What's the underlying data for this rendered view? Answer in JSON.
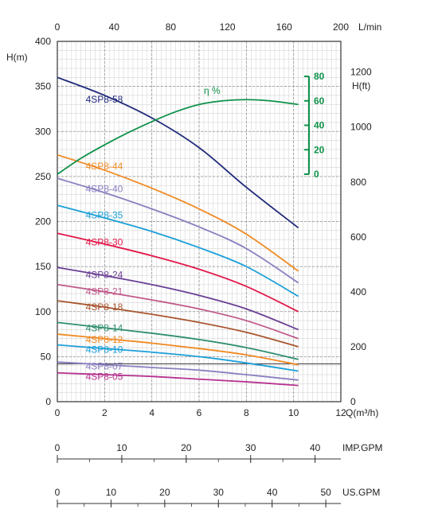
{
  "chart_data": {
    "type": "line",
    "axes": {
      "q_m3h": {
        "label": "Q(m³/h)",
        "ticks": [
          "0",
          "2",
          "4",
          "6",
          "8",
          "10",
          "12"
        ],
        "range": [
          0,
          12
        ]
      },
      "q_lmin": {
        "label": "L/min",
        "ticks": [
          "0",
          "40",
          "80",
          "120",
          "160",
          "200"
        ],
        "range": [
          0,
          200
        ]
      },
      "head_m": {
        "label": "H(m)",
        "ticks": [
          "0",
          "50",
          "100",
          "150",
          "200",
          "250",
          "300",
          "350",
          "400"
        ],
        "range": [
          0,
          400
        ]
      },
      "head_ft": {
        "label": "H(ft)",
        "ticks": [
          "0",
          "200",
          "400",
          "600",
          "800",
          "1000",
          "1200"
        ],
        "range": [
          0,
          1312
        ]
      },
      "efficiency": {
        "label": "η %",
        "ticks": [
          "0",
          "20",
          "40",
          "60",
          "80"
        ],
        "range": [
          0,
          80
        ]
      },
      "imp_gpm": {
        "label": "IMP.GPM",
        "ticks": [
          "0",
          "10",
          "20",
          "30",
          "40"
        ],
        "range": [
          0,
          44
        ]
      },
      "us_gpm": {
        "label": "US.GPM",
        "ticks": [
          "0",
          "10",
          "20",
          "30",
          "40",
          "50"
        ],
        "range": [
          0,
          52.8
        ]
      }
    },
    "grid": true,
    "reference_line_head_m": 42,
    "series": [
      {
        "name": "4SP8-58",
        "color": "#1f2a7a",
        "x": [
          0,
          2,
          4,
          6,
          8,
          10.2
        ],
        "y": [
          360,
          340,
          315,
          282,
          238,
          193
        ]
      },
      {
        "name": "4SP8-44",
        "color": "#f08a24",
        "x": [
          0,
          2,
          4,
          6,
          8,
          10.2
        ],
        "y": [
          274,
          257,
          237,
          214,
          186,
          145
        ]
      },
      {
        "name": "4SP8-40",
        "color": "#8a7ec0",
        "x": [
          0,
          2,
          4,
          6,
          8,
          10.2
        ],
        "y": [
          248,
          232,
          214,
          194,
          170,
          132
        ]
      },
      {
        "name": "4SP8-35",
        "color": "#1b9fd8",
        "x": [
          0,
          2,
          4,
          6,
          8,
          10.2
        ],
        "y": [
          218,
          204,
          189,
          171,
          150,
          117
        ]
      },
      {
        "name": "4SP8-30",
        "color": "#e2184a",
        "x": [
          0,
          2,
          4,
          6,
          8,
          10.2
        ],
        "y": [
          187,
          175,
          162,
          147,
          128,
          100
        ]
      },
      {
        "name": "4SP8-24",
        "color": "#6a3f95",
        "x": [
          0,
          2,
          4,
          6,
          8,
          10.2
        ],
        "y": [
          149,
          140,
          130,
          118,
          103,
          80
        ]
      },
      {
        "name": "4SP8-21",
        "color": "#c0598a",
        "x": [
          0,
          2,
          4,
          6,
          8,
          10.2
        ],
        "y": [
          130,
          122,
          113,
          103,
          90,
          70
        ]
      },
      {
        "name": "4SP8-18",
        "color": "#a8552e",
        "x": [
          0,
          2,
          4,
          6,
          8,
          10.2
        ],
        "y": [
          112,
          105,
          97,
          88,
          77,
          61
        ]
      },
      {
        "name": "4SP8-14",
        "color": "#2f8f6e",
        "x": [
          0,
          2,
          4,
          6,
          8,
          10.2
        ],
        "y": [
          88,
          82,
          76,
          69,
          60,
          47
        ]
      },
      {
        "name": "4SP8-12",
        "color": "#f08a24",
        "x": [
          0,
          2,
          4,
          6,
          8,
          10.2
        ],
        "y": [
          75,
          70,
          65,
          59,
          52,
          41
        ]
      },
      {
        "name": "4SP8-10",
        "color": "#1b9fd8",
        "x": [
          0,
          2,
          4,
          6,
          8,
          10.2
        ],
        "y": [
          63,
          59,
          55,
          50,
          43,
          34
        ]
      },
      {
        "name": "4SP8-07",
        "color": "#8a7ec0",
        "x": [
          0,
          2,
          4,
          6,
          8,
          10.2
        ],
        "y": [
          44,
          41,
          38,
          35,
          30,
          24
        ]
      },
      {
        "name": "4SP8-05",
        "color": "#b8328f",
        "x": [
          0,
          2,
          4,
          6,
          8,
          10.2
        ],
        "y": [
          32,
          30,
          28,
          25,
          22,
          18
        ]
      }
    ],
    "efficiency_curve": {
      "color": "#10924a",
      "x": [
        0,
        1,
        2,
        3,
        4,
        5,
        6,
        7,
        8,
        9,
        10.2
      ],
      "y": [
        0,
        13,
        24,
        34,
        43,
        51,
        57,
        60,
        61,
        60,
        57
      ]
    }
  }
}
